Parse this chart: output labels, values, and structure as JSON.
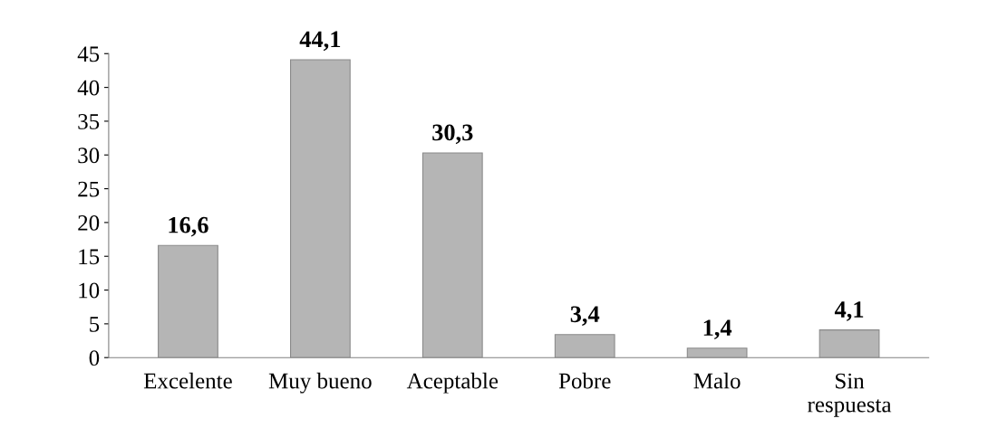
{
  "chart_data": {
    "type": "bar",
    "categories": [
      "Excelente",
      "Muy bueno",
      "Aceptable",
      "Pobre",
      "Malo",
      "Sin\nrespuesta"
    ],
    "values": [
      16.6,
      44.1,
      30.3,
      3.4,
      1.4,
      4.1
    ],
    "value_labels": [
      "16,6",
      "44,1",
      "30,3",
      "3,4",
      "1,4",
      "4,1"
    ],
    "color": "#b5b5b5",
    "ylim": [
      0,
      45
    ],
    "yticks": [
      0,
      5,
      10,
      15,
      20,
      25,
      30,
      35,
      40,
      45
    ],
    "grid": false,
    "legend": false
  }
}
